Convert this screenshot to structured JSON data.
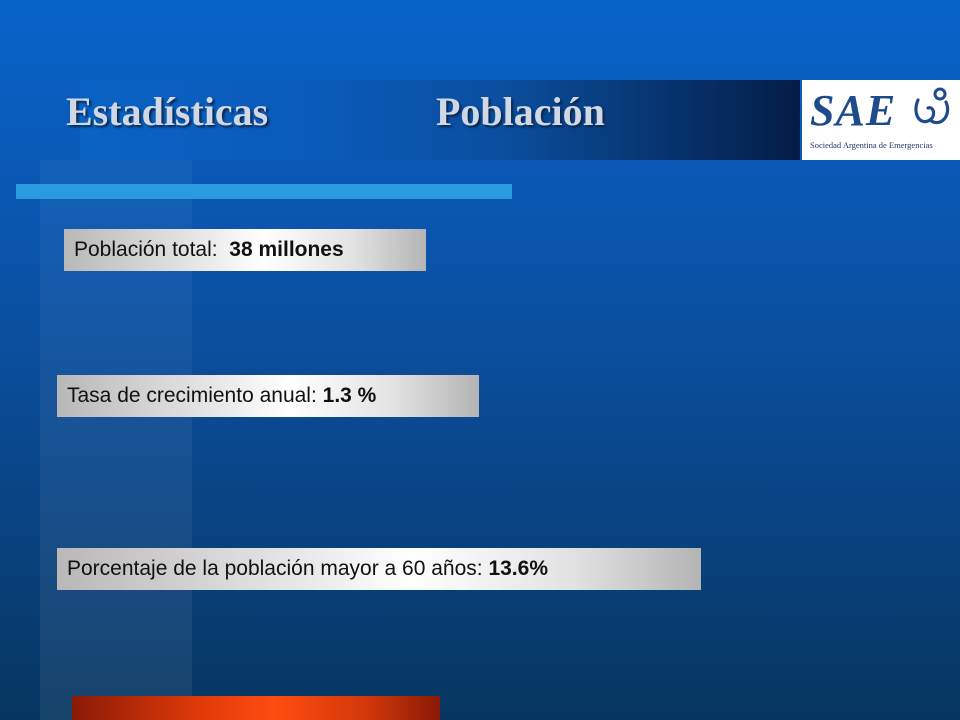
{
  "title": {
    "left": "Estadísticas",
    "right": "Población"
  },
  "logo": {
    "letters": "SAE",
    "subtitle": "Sociedad Argentina de Emergencias"
  },
  "stats": [
    {
      "label": "Población total:",
      "value": "38 millones"
    },
    {
      "label": "Tasa de crecimiento anual:",
      "value": "1.3 %"
    },
    {
      "label": "Porcentaje de la población mayor a 60 años:",
      "value": "13.6%"
    }
  ],
  "colors": {
    "background": "#0a56b0",
    "accent_bar": "#2a9be0",
    "bottom_bar": "#ff4c10",
    "title_text": "#d0d8e6",
    "logo_blue": "#1e4b8c"
  }
}
